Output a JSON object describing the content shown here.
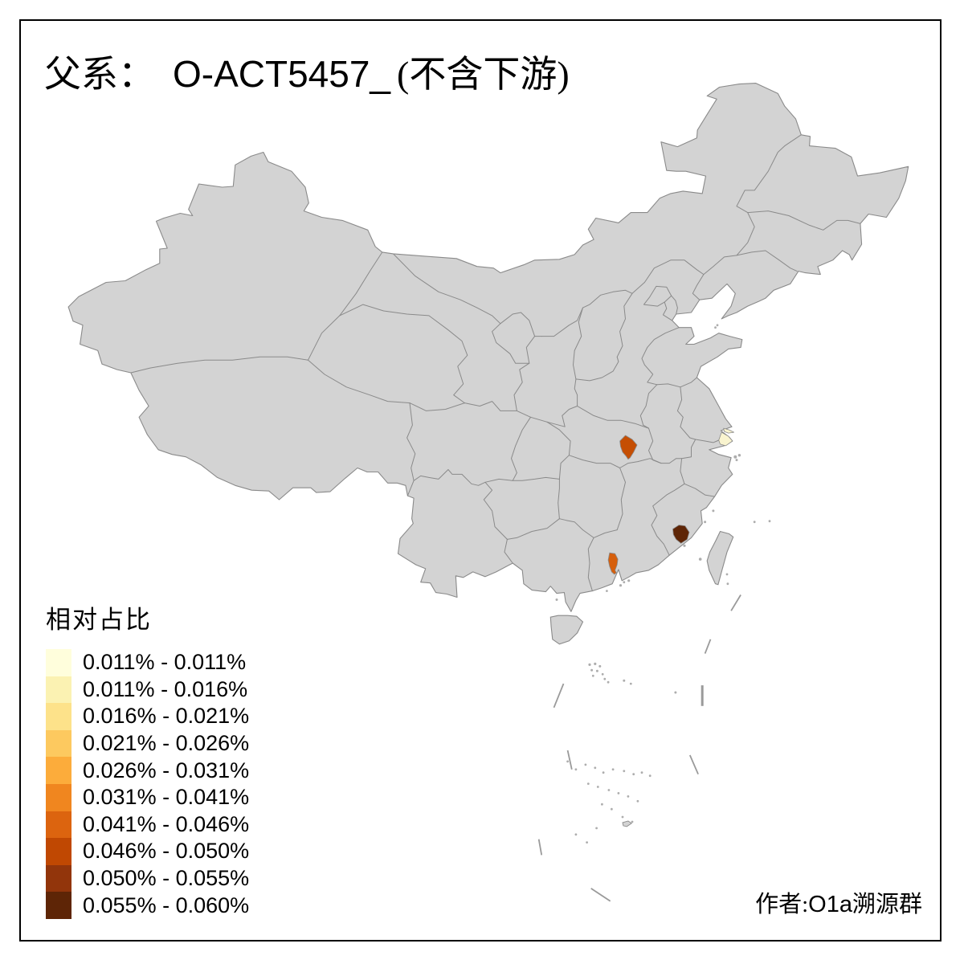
{
  "title": {
    "prefix": "父系：",
    "haplogroup": "O-ACT5457_",
    "suffix": "(不含下游)"
  },
  "legend": {
    "title": "相对占比",
    "items": [
      {
        "label": "0.011% - 0.011%",
        "color": "#FFFEDC"
      },
      {
        "label": "0.011% - 0.016%",
        "color": "#FBF2B2"
      },
      {
        "label": "0.016% - 0.021%",
        "color": "#FDE28A"
      },
      {
        "label": "0.021% - 0.026%",
        "color": "#FDC95F"
      },
      {
        "label": "0.026% - 0.031%",
        "color": "#FCAC3B"
      },
      {
        "label": "0.031% - 0.041%",
        "color": "#F0861F"
      },
      {
        "label": "0.041% - 0.046%",
        "color": "#DC640F"
      },
      {
        "label": "0.046% - 0.050%",
        "color": "#C04802"
      },
      {
        "label": "0.050% - 0.055%",
        "color": "#92350B"
      },
      {
        "label": "0.055% - 0.060%",
        "color": "#5E2506"
      }
    ]
  },
  "author": {
    "prefix": "作者:",
    "latin": "O1a",
    "suffix": "溯源群"
  },
  "map": {
    "background": "#FFFFFF",
    "land_fill": "#D3D3D3",
    "border_color": "#8A8A8A",
    "frame_color": "#000000",
    "highlights": [
      {
        "id": "shanghai",
        "color": "#F9F4CF"
      },
      {
        "id": "wuhan",
        "color": "#C54E03"
      },
      {
        "id": "quanzhou",
        "color": "#5E2506"
      },
      {
        "id": "guangzhou",
        "color": "#D65F0C"
      }
    ]
  }
}
